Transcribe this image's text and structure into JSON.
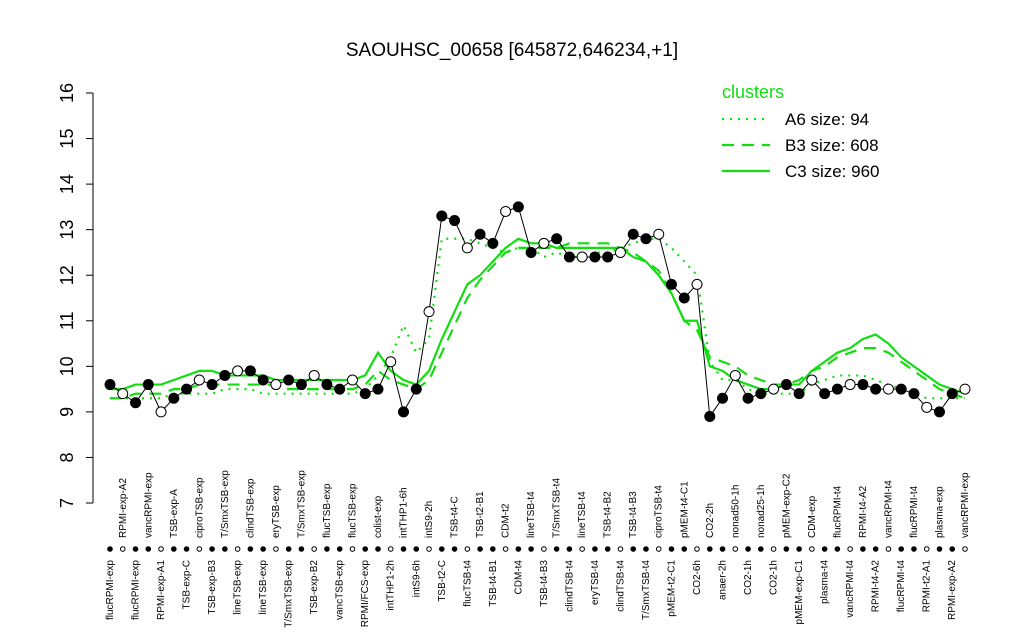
{
  "chart_data": {
    "type": "line",
    "title": "SAOUHSC_00658 [645872,646234,+1]",
    "categories": [
      "flucRPMI-exp",
      "RPMI-exp-A2",
      "flucRPMI-exp",
      "vancRPMI-exp",
      "RPMI-exp-A1",
      "TSB-exp-A",
      "TSB-exp-C",
      "ciproTSB-exp",
      "TSB-exp-B3",
      "T/SmxTSB-exp",
      "lineTSB-exp",
      "clindTSB-exp",
      "lineTSB-exp",
      "eryTSB-exp",
      "T/SmxTSB-exp",
      "T/SmxTSB-exp",
      "TSB-exp-B2",
      "flucTSB-exp",
      "vancTSB-exp",
      "flucTSB-exp",
      "RPMI/FCS-exp",
      "colist-exp",
      "intTHP1-2h",
      "intTHP1-6h",
      "intS9-6h",
      "intS9-2h",
      "TSB-t2-C",
      "TSB-t4-C",
      "flucTSB-t4",
      "TSB-t2-B1",
      "TSB-t4-B1",
      "CDM-t2",
      "CDM-t4",
      "lineTSB-t4",
      "TSB-t4-B3",
      "T/SmxTSB-t4",
      "clindTSB-t4",
      "lineTSB-t4",
      "eryTSB-t4",
      "TSB-t4-B2",
      "clindTSB-t4",
      "TSB-t4-B3",
      "T/SmxTSB-t4",
      "ciproTSB-t4",
      "pMEM-t2-C1",
      "pMEM-t4-C1",
      "CO2-6h",
      "CO2-2h",
      "anaer-2h",
      "nonad50-1h",
      "CO2-1h",
      "nonad25-1h",
      "CO2-1h",
      "pMEM-exp-C2",
      "pMEM-exp-C1",
      "CDM-exp",
      "plasma-t4",
      "flucRPMI-t4",
      "vancRPMI-t4",
      "RPMI-t4-A2",
      "RPMI-t4-A2",
      "vancRPMI-t4",
      "flucRPMI-t4",
      "flucRPMI-t4",
      "RPMI-t2-A1",
      "plasma-exp",
      "RPMI-exp-A2",
      "vancRPMI-exp"
    ],
    "values": [
      9.6,
      9.4,
      9.2,
      9.6,
      9.0,
      9.3,
      9.5,
      9.7,
      9.6,
      9.8,
      9.9,
      9.9,
      9.7,
      9.6,
      9.7,
      9.6,
      9.8,
      9.6,
      9.5,
      9.7,
      9.4,
      9.5,
      10.1,
      9.0,
      9.5,
      11.2,
      13.3,
      13.2,
      12.6,
      12.9,
      12.7,
      13.4,
      13.5,
      12.5,
      12.7,
      12.8,
      12.4,
      12.4,
      12.4,
      12.4,
      12.5,
      12.9,
      12.8,
      12.9,
      11.8,
      11.5,
      11.8,
      8.9,
      9.3,
      9.8,
      9.3,
      9.4,
      9.5,
      9.6,
      9.4,
      9.7,
      9.4,
      9.5,
      9.6,
      9.6,
      9.5,
      9.5,
      9.5,
      9.4,
      9.1,
      9.0,
      9.4,
      9.5
    ],
    "color": "#000000",
    "legend_title": "clusters",
    "series": [
      {
        "name": "A6 size: 94",
        "color": "#11dd11",
        "style": "dotted",
        "values": [
          9.3,
          9.3,
          9.3,
          9.3,
          9.3,
          9.4,
          9.4,
          9.4,
          9.4,
          9.5,
          9.5,
          9.5,
          9.4,
          9.4,
          9.4,
          9.4,
          9.4,
          9.4,
          9.4,
          9.4,
          9.5,
          9.8,
          10.2,
          10.9,
          10.3,
          10.6,
          12.8,
          12.8,
          12.8,
          12.7,
          12.6,
          12.5,
          12.6,
          12.6,
          12.4,
          12.5,
          12.4,
          12.4,
          12.5,
          12.5,
          12.6,
          12.7,
          12.8,
          12.8,
          12.6,
          12.3,
          12.0,
          10.1,
          9.7,
          9.7,
          9.5,
          9.4,
          9.4,
          9.4,
          9.4,
          9.6,
          9.7,
          9.8,
          9.8,
          9.8,
          9.7,
          9.6,
          9.5,
          9.4,
          9.3,
          9.3,
          9.3,
          9.3
        ]
      },
      {
        "name": "B3 size: 608",
        "color": "#11dd11",
        "style": "dashed",
        "values": [
          9.3,
          9.3,
          9.4,
          9.4,
          9.4,
          9.5,
          9.5,
          9.6,
          9.6,
          9.6,
          9.6,
          9.6,
          9.6,
          9.6,
          9.5,
          9.5,
          9.5,
          9.5,
          9.5,
          9.5,
          9.6,
          9.9,
          9.7,
          9.6,
          9.5,
          9.7,
          10.3,
          10.9,
          11.5,
          11.9,
          12.2,
          12.5,
          12.6,
          12.6,
          12.6,
          12.6,
          12.7,
          12.7,
          12.7,
          12.7,
          12.6,
          12.5,
          12.3,
          12.1,
          11.6,
          11.0,
          10.8,
          10.2,
          10.1,
          10.0,
          9.8,
          9.7,
          9.6,
          9.6,
          9.7,
          9.9,
          10.0,
          10.2,
          10.3,
          10.4,
          10.4,
          10.3,
          10.1,
          9.9,
          9.7,
          9.5,
          9.4,
          9.3
        ]
      },
      {
        "name": "C3 size: 960",
        "color": "#11dd11",
        "style": "solid",
        "values": [
          9.5,
          9.5,
          9.6,
          9.6,
          9.6,
          9.7,
          9.8,
          9.9,
          9.9,
          9.8,
          9.8,
          9.8,
          9.8,
          9.7,
          9.7,
          9.7,
          9.7,
          9.7,
          9.7,
          9.7,
          9.8,
          10.3,
          9.9,
          9.7,
          9.6,
          9.9,
          10.6,
          11.2,
          11.8,
          12.0,
          12.3,
          12.6,
          12.8,
          12.7,
          12.7,
          12.6,
          12.6,
          12.6,
          12.6,
          12.6,
          12.6,
          12.4,
          12.3,
          12.0,
          11.6,
          11.0,
          11.0,
          10.0,
          9.9,
          9.7,
          9.6,
          9.5,
          9.5,
          9.6,
          9.6,
          9.9,
          10.1,
          10.3,
          10.4,
          10.6,
          10.7,
          10.5,
          10.2,
          10.0,
          9.8,
          9.6,
          9.5,
          9.4
        ]
      }
    ],
    "ylim": [
      7,
      16
    ],
    "yticks": [
      7,
      8,
      9,
      10,
      11,
      12,
      13,
      14,
      15,
      16
    ]
  }
}
